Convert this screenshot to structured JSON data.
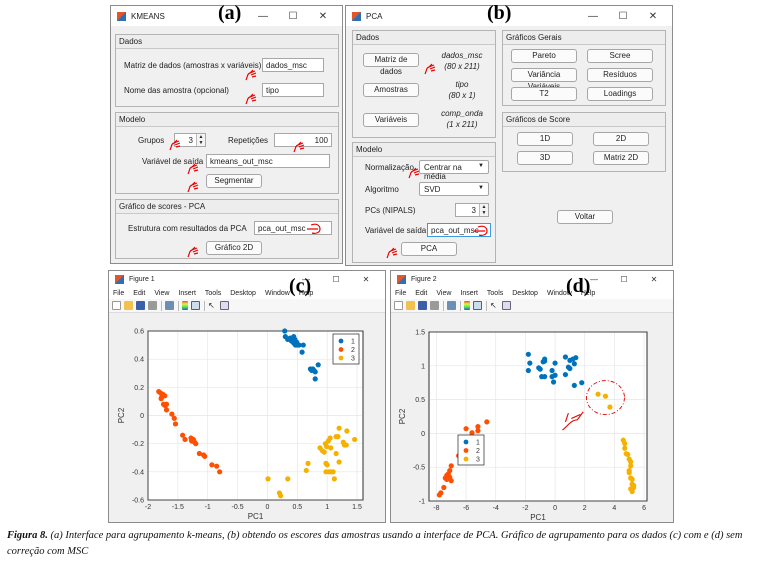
{
  "panels": {
    "a": "(a)",
    "b": "(b)",
    "c": "(c)",
    "d": "(d)"
  },
  "window_controls": {
    "minimize": "—",
    "maximize": "☐",
    "close": "✕"
  },
  "kmeans": {
    "title": "KMEANS",
    "dados": {
      "header": "Dados",
      "matrix_label": "Matriz de dados (amostras x variáveis)",
      "matrix_value": "dados_msc",
      "names_label": "Nome das amostra (opcional)",
      "names_value": "tipo"
    },
    "modelo": {
      "header": "Modelo",
      "groups_label": "Grupos",
      "groups_value": "3",
      "reps_label": "Repetições",
      "reps_value": "100",
      "output_label": "Variável de saída",
      "output_value": "kmeans_out_msc",
      "segment_button": "Segmentar"
    },
    "scores": {
      "header": "Gráfico de scores - PCA",
      "struct_label": "Estrutura com resultados da PCA",
      "struct_value": "pca_out_msc",
      "plot_button": "Gráfico 2D"
    }
  },
  "pca": {
    "title": "PCA",
    "dados": {
      "header": "Dados",
      "matrix_button": "Matriz de dados",
      "matrix_name": "dados_msc",
      "matrix_size": "(80 x 211)",
      "samples_button": "Amostras",
      "samples_name": "tipo",
      "samples_size": "(80 x 1)",
      "vars_button": "Variáveis",
      "vars_name": "comp_onda",
      "vars_size": "(1 x 211)"
    },
    "modelo": {
      "header": "Modelo",
      "norm_label": "Normalização",
      "norm_value": "Centrar na média",
      "algo_label": "Algoritmo",
      "algo_value": "SVD",
      "pcs_label": "PCs (NIPALS)",
      "pcs_value": "3",
      "output_label": "Variável de saída",
      "output_value": "pca_out_msc",
      "pca_button": "PCA"
    },
    "graficos_gerais": {
      "header": "Gráficos Gerais",
      "buttons": [
        "Pareto",
        "Scree",
        "Variância Variáveis",
        "Resíduos",
        "T2",
        "Loadings"
      ]
    },
    "graficos_score": {
      "header": "Gráficos de Score",
      "buttons": [
        "1D",
        "2D",
        "3D",
        "Matriz 2D"
      ]
    },
    "back_button": "Voltar"
  },
  "figure_menu": [
    "File",
    "Edit",
    "View",
    "Insert",
    "Tools",
    "Desktop",
    "Window",
    "Help"
  ],
  "figure_toolbar_icons": [
    "new-file-icon",
    "open-folder-icon",
    "save-icon",
    "print-icon",
    "zoom-figure-icon",
    "colorbar-icon",
    "legend-icon",
    "pointer-icon",
    "property-editor-icon"
  ],
  "colors": {
    "cluster1": "#0072bd",
    "cluster2": "#ff4f00",
    "cluster3": "#f5b100",
    "annotation": "#e00000"
  },
  "figure1": {
    "title": "Figure 1"
  },
  "figure2": {
    "title": "Figure 2"
  },
  "chart_data": [
    {
      "type": "scatter",
      "title": "",
      "xlabel": "PC1",
      "ylabel": "PC2",
      "xlim": [
        -2,
        1.6
      ],
      "ylim": [
        -0.6,
        0.6
      ],
      "xticks": [
        -2,
        -1.5,
        -1,
        -0.5,
        0,
        0.5,
        1,
        1.5
      ],
      "yticks": [
        -0.6,
        -0.4,
        -0.2,
        0,
        0.2,
        0.4,
        0.6
      ],
      "grid": true,
      "legend_position": "top-right",
      "series": [
        {
          "name": "1",
          "points": [
            [
              0.29,
              0.6
            ],
            [
              0.3,
              0.56
            ],
            [
              0.34,
              0.54
            ],
            [
              0.38,
              0.55
            ],
            [
              0.4,
              0.53
            ],
            [
              0.42,
              0.55
            ],
            [
              0.43,
              0.52
            ],
            [
              0.44,
              0.56
            ],
            [
              0.45,
              0.51
            ],
            [
              0.46,
              0.54
            ],
            [
              0.47,
              0.5
            ],
            [
              0.49,
              0.52
            ],
            [
              0.5,
              0.5
            ],
            [
              0.53,
              0.5
            ],
            [
              0.6,
              0.5
            ],
            [
              0.58,
              0.45
            ],
            [
              0.72,
              0.33
            ],
            [
              0.74,
              0.32
            ],
            [
              0.76,
              0.33
            ],
            [
              0.78,
              0.32
            ],
            [
              0.8,
              0.31
            ],
            [
              0.85,
              0.36
            ],
            [
              0.8,
              0.26
            ]
          ]
        },
        {
          "name": "2",
          "points": [
            [
              -1.82,
              0.17
            ],
            [
              -1.79,
              0.16
            ],
            [
              -1.77,
              0.13
            ],
            [
              -1.75,
              0.15
            ],
            [
              -1.72,
              0.14
            ],
            [
              -1.78,
              0.12
            ],
            [
              -1.74,
              0.08
            ],
            [
              -1.71,
              0.07
            ],
            [
              -1.69,
              0.08
            ],
            [
              -1.69,
              0.04
            ],
            [
              -1.6,
              0.01
            ],
            [
              -1.56,
              -0.02
            ],
            [
              -1.54,
              -0.06
            ],
            [
              -1.42,
              -0.14
            ],
            [
              -1.38,
              -0.17
            ],
            [
              -1.28,
              -0.16
            ],
            [
              -1.27,
              -0.18
            ],
            [
              -1.24,
              -0.17
            ],
            [
              -1.22,
              -0.19
            ],
            [
              -1.2,
              -0.2
            ],
            [
              -1.14,
              -0.27
            ],
            [
              -1.07,
              -0.28
            ],
            [
              -1.05,
              -0.29
            ],
            [
              -0.93,
              -0.35
            ],
            [
              -0.85,
              -0.36
            ],
            [
              -0.8,
              -0.4
            ]
          ]
        },
        {
          "name": "3",
          "points": [
            [
              0.01,
              -0.45
            ],
            [
              0.34,
              -0.45
            ],
            [
              0.2,
              -0.55
            ],
            [
              0.22,
              -0.57
            ],
            [
              0.65,
              -0.39
            ],
            [
              0.68,
              -0.34
            ],
            [
              0.88,
              -0.23
            ],
            [
              0.92,
              -0.25
            ],
            [
              0.95,
              -0.26
            ],
            [
              0.97,
              -0.2
            ],
            [
              0.99,
              -0.22
            ],
            [
              1.02,
              -0.18
            ],
            [
              1.05,
              -0.16
            ],
            [
              1.06,
              -0.23
            ],
            [
              1.15,
              -0.15
            ],
            [
              1.18,
              -0.15
            ],
            [
              1.2,
              -0.09
            ],
            [
              1.27,
              -0.19
            ],
            [
              1.29,
              -0.21
            ],
            [
              1.32,
              -0.21
            ],
            [
              1.33,
              -0.11
            ],
            [
              1.46,
              -0.17
            ],
            [
              0.98,
              -0.34
            ],
            [
              1.0,
              -0.35
            ],
            [
              0.98,
              -0.4
            ],
            [
              1.03,
              -0.4
            ],
            [
              1.07,
              -0.4
            ],
            [
              1.1,
              -0.4
            ],
            [
              1.12,
              -0.45
            ],
            [
              1.15,
              -0.27
            ],
            [
              1.2,
              -0.33
            ]
          ]
        }
      ]
    },
    {
      "type": "scatter",
      "title": "",
      "xlabel": "PC1",
      "ylabel": "PC2",
      "xlim": [
        -8.5,
        6.2
      ],
      "ylim": [
        -1,
        1.5
      ],
      "xticks": [
        -8,
        -6,
        -4,
        -2,
        0,
        2,
        4,
        6
      ],
      "yticks": [
        -1,
        -0.5,
        0,
        0.5,
        1,
        1.5
      ],
      "grid": true,
      "legend_position": "center",
      "annotation": "dash-dot circle around three cluster-3 points near PC1≈3.3, PC2≈0.5",
      "series": [
        {
          "name": "1",
          "points": [
            [
              -1.8,
              1.17
            ],
            [
              -1.7,
              1.04
            ],
            [
              -1.8,
              0.93
            ],
            [
              -1.1,
              0.97
            ],
            [
              -1.0,
              0.95
            ],
            [
              -0.8,
              1.06
            ],
            [
              -0.7,
              1.1
            ],
            [
              -0.7,
              1.07
            ],
            [
              -0.9,
              0.84
            ],
            [
              -0.7,
              0.84
            ],
            [
              -0.2,
              0.93
            ],
            [
              0.0,
              1.04
            ],
            [
              -0.2,
              0.84
            ],
            [
              0.0,
              0.86
            ],
            [
              -0.1,
              0.76
            ],
            [
              0.7,
              1.13
            ],
            [
              0.7,
              0.87
            ],
            [
              0.9,
              0.98
            ],
            [
              1.0,
              0.96
            ],
            [
              1.0,
              1.08
            ],
            [
              1.2,
              1.1
            ],
            [
              1.3,
              1.03
            ],
            [
              1.4,
              1.12
            ],
            [
              1.3,
              0.71
            ],
            [
              1.8,
              0.75
            ]
          ]
        },
        {
          "name": "2",
          "points": [
            [
              -6.0,
              0.07
            ],
            [
              -5.6,
              0.01
            ],
            [
              -5.7,
              -0.05
            ],
            [
              -5.2,
              0.04
            ],
            [
              -5.2,
              0.1
            ],
            [
              -4.6,
              0.17
            ],
            [
              -6.1,
              -0.3
            ],
            [
              -6.5,
              -0.33
            ],
            [
              -7.0,
              -0.48
            ],
            [
              -7.1,
              -0.55
            ],
            [
              -7.2,
              -0.6
            ],
            [
              -7.3,
              -0.62
            ],
            [
              -7.4,
              -0.66
            ],
            [
              -7.1,
              -0.65
            ],
            [
              -7.0,
              -0.7
            ],
            [
              -7.3,
              -0.68
            ],
            [
              -7.5,
              -0.8
            ],
            [
              -7.7,
              -0.88
            ],
            [
              -7.8,
              -0.91
            ],
            [
              -7.2,
              -0.63
            ]
          ]
        },
        {
          "name": "3",
          "points": [
            [
              2.9,
              0.58
            ],
            [
              3.4,
              0.55
            ],
            [
              3.7,
              0.39
            ],
            [
              4.6,
              -0.1
            ],
            [
              4.7,
              -0.15
            ],
            [
              4.7,
              -0.22
            ],
            [
              4.8,
              -0.3
            ],
            [
              4.9,
              -0.31
            ],
            [
              5.0,
              -0.38
            ],
            [
              5.1,
              -0.42
            ],
            [
              5.1,
              -0.48
            ],
            [
              5.0,
              -0.55
            ],
            [
              5.0,
              -0.58
            ],
            [
              5.1,
              -0.66
            ],
            [
              5.2,
              -0.68
            ],
            [
              5.2,
              -0.75
            ],
            [
              5.1,
              -0.82
            ],
            [
              5.3,
              -0.8
            ],
            [
              5.2,
              -0.86
            ],
            [
              5.3,
              -0.77
            ]
          ]
        }
      ]
    }
  ],
  "caption": {
    "label": "Figura 8.",
    "text": " (a) Interface para agrupamento k-means, (b) obtendo os escores das amostras usando a interface de PCA. Gráfico de agrupamento para os dados (c) com e (d) sem correção com MSC"
  }
}
